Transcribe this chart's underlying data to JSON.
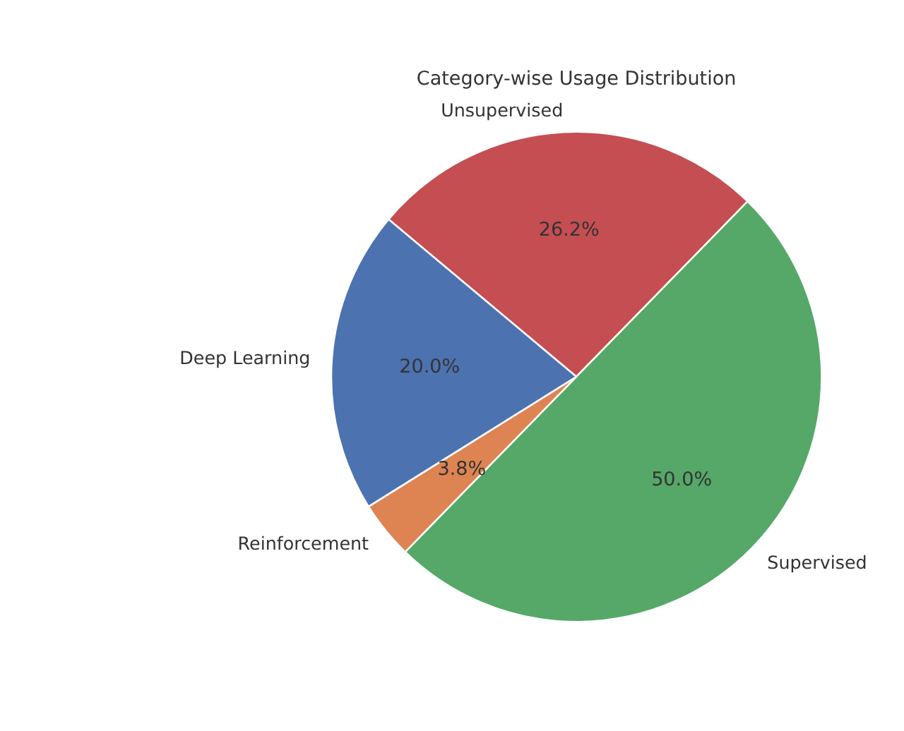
{
  "chart_data": {
    "type": "pie",
    "title": "Category-wise Usage Distribution",
    "categories": [
      "Unsupervised",
      "Supervised",
      "Reinforcement",
      "Deep Learning"
    ],
    "values": [
      26.2,
      50.0,
      3.8,
      20.0
    ],
    "colors": [
      "#c44e52",
      "#55a868",
      "#dd8452",
      "#4c72b0"
    ],
    "data_labels": true,
    "value_labels": [
      "26.2%",
      "50.0%",
      "3.8%",
      "20.0%"
    ]
  }
}
